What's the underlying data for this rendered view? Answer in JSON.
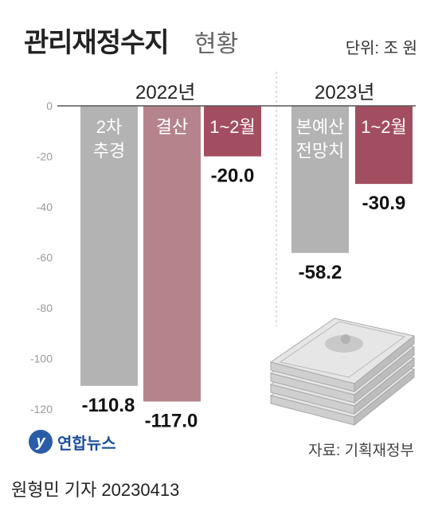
{
  "header": {
    "title": "관리재정수지",
    "title_suffix": "현황",
    "unit": "단위: 조 원"
  },
  "groups": [
    "2022년",
    "2023년"
  ],
  "chart_data": {
    "type": "bar",
    "title": "관리재정수지 현황",
    "unit": "조 원",
    "categories": [
      "2차 추경",
      "결산",
      "1~2월",
      "본예산 전망치",
      "1~2월"
    ],
    "category_lines": [
      [
        "2차",
        "추경"
      ],
      [
        "결산"
      ],
      [
        "1~2월"
      ],
      [
        "본예산",
        "전망치"
      ],
      [
        "1~2월"
      ]
    ],
    "groups": [
      "2022년",
      "2022년",
      "2022년",
      "2023년",
      "2023년"
    ],
    "values": [
      -110.8,
      -117.0,
      -20.0,
      -58.2,
      -30.9
    ],
    "value_labels": [
      "-110.8",
      "-117.0",
      "-20.0",
      "-58.2",
      "-30.9"
    ],
    "colors": [
      "#b3b3b3",
      "#b5838c",
      "#a34e60",
      "#b3b3b3",
      "#a34e60"
    ],
    "ylim": [
      -120,
      0
    ],
    "yticks": [
      0,
      -20,
      -40,
      -60,
      -80,
      -100,
      -120
    ],
    "grid": false
  },
  "footer": {
    "source": "자료: 기획재정부",
    "agency": "연합뉴스",
    "byline": "원형민 기자  20230413"
  }
}
